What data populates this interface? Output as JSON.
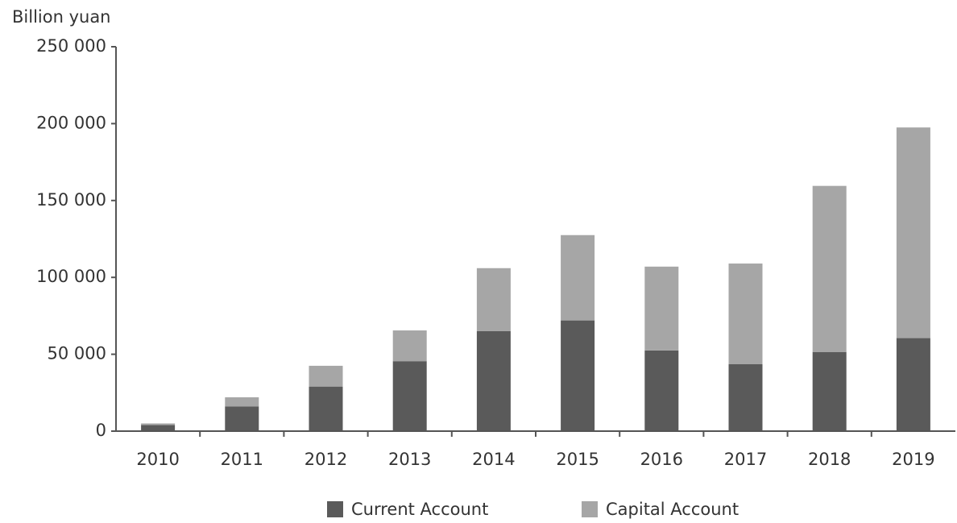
{
  "chart_data": {
    "type": "stacked_bar",
    "y_label": "Billion yuan",
    "categories": [
      "2010",
      "2011",
      "2012",
      "2013",
      "2014",
      "2015",
      "2016",
      "2017",
      "2018",
      "2019"
    ],
    "series": [
      {
        "name": "Current Account",
        "color": "#5a5a5a",
        "values": [
          4000,
          16000,
          29000,
          45500,
          65000,
          72000,
          52500,
          43500,
          51500,
          60500
        ]
      },
      {
        "name": "Capital Account",
        "color": "#a6a6a6",
        "values": [
          1000,
          6000,
          13500,
          20000,
          41000,
          55500,
          54500,
          65500,
          108000,
          137000
        ]
      }
    ],
    "ylim": [
      0,
      250000
    ],
    "yticks": [
      0,
      {
        "value": 50000,
        "label": "50 000"
      },
      {
        "value": 100000,
        "label": "100 000"
      },
      {
        "value": 150000,
        "label": "150 000"
      },
      {
        "value": 200000,
        "label": "200 000"
      },
      {
        "value": 250000,
        "label": "250 000"
      }
    ]
  }
}
